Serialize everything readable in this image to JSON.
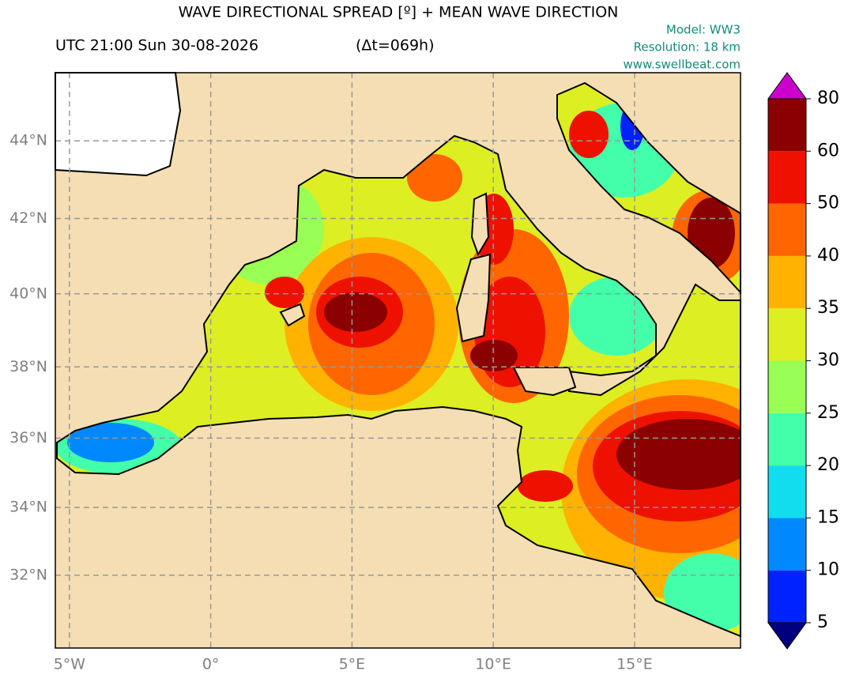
{
  "chart_data": {
    "type": "map",
    "title": "WAVE DIRECTIONAL SPREAD [º] + MEAN WAVE DIRECTION",
    "subtitle": "UTC 21:00 Sun 30-08-2026",
    "lead_time": "(Δt=069h)",
    "annotations": [
      "Model: WW3",
      "Resolution: 18 km",
      "www.swellbeat.com"
    ],
    "projection": "mercator",
    "xlim": [
      -5.5,
      18.75
    ],
    "ylim": [
      29.8,
      45.7
    ],
    "xticks": [
      {
        "value": -5,
        "label": "5°W"
      },
      {
        "value": 0,
        "label": "0°"
      },
      {
        "value": 5,
        "label": "5°E"
      },
      {
        "value": 10,
        "label": "10°E"
      },
      {
        "value": 15,
        "label": "15°E"
      }
    ],
    "yticks": [
      {
        "value": 32,
        "label": "32°N"
      },
      {
        "value": 34,
        "label": "34°N"
      },
      {
        "value": 36,
        "label": "36°N"
      },
      {
        "value": 38,
        "label": "38°N"
      },
      {
        "value": 40,
        "label": "40°N"
      },
      {
        "value": 42,
        "label": "42°N"
      },
      {
        "value": 44,
        "label": "44°N"
      }
    ],
    "grid": true,
    "colorbar": {
      "levels": [
        5,
        10,
        15,
        20,
        25,
        30,
        35,
        40,
        50,
        60,
        80
      ],
      "colors": [
        "#0022ff",
        "#0088ff",
        "#11ddee",
        "#44ffaa",
        "#99ff55",
        "#ddee22",
        "#ffb300",
        "#ff6600",
        "#ee1100",
        "#8b0000"
      ],
      "under_color": "#00007f",
      "over_color": "#cc00cc"
    }
  }
}
